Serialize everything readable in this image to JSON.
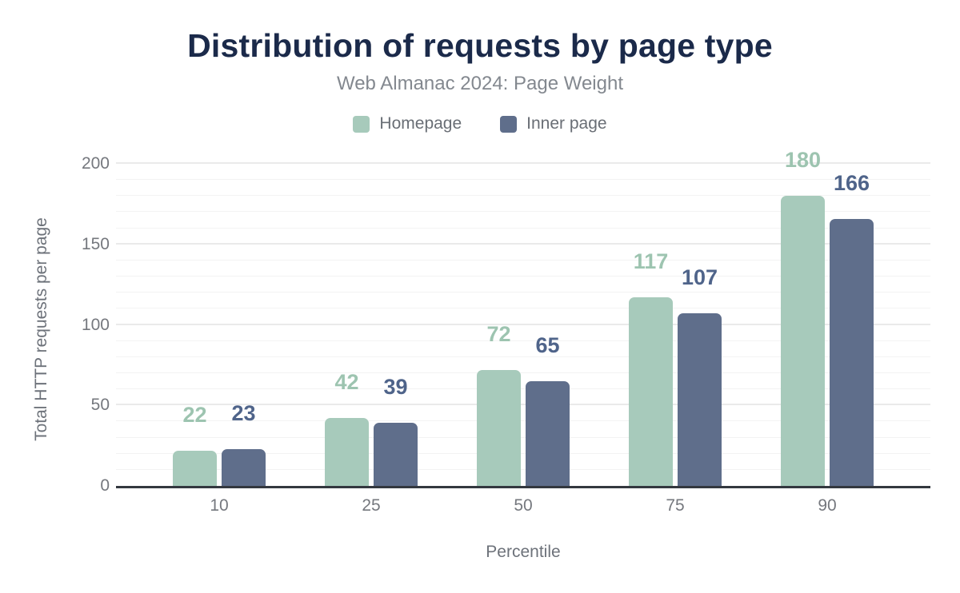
{
  "chart_data": {
    "type": "bar",
    "title": "Distribution of requests by page type",
    "subtitle": "Web Almanac 2024: Page Weight",
    "xlabel": "Percentile",
    "ylabel": "Total HTTP requests per page",
    "categories": [
      "10",
      "25",
      "50",
      "75",
      "90"
    ],
    "series": [
      {
        "name": "Homepage",
        "color": "#a7cabb",
        "label_color": "#9dc4b0",
        "values": [
          22,
          42,
          72,
          117,
          180
        ]
      },
      {
        "name": "Inner page",
        "color": "#5f6e8b",
        "label_color": "#4f648a",
        "values": [
          23,
          39,
          65,
          107,
          166
        ]
      }
    ],
    "ylim": [
      0,
      200
    ],
    "ytick_step": 50,
    "grid_minor_step": 10,
    "grid": true,
    "legend_position": "top",
    "title_color": "#1b2a4a",
    "axis_line_color": "#33383f"
  }
}
